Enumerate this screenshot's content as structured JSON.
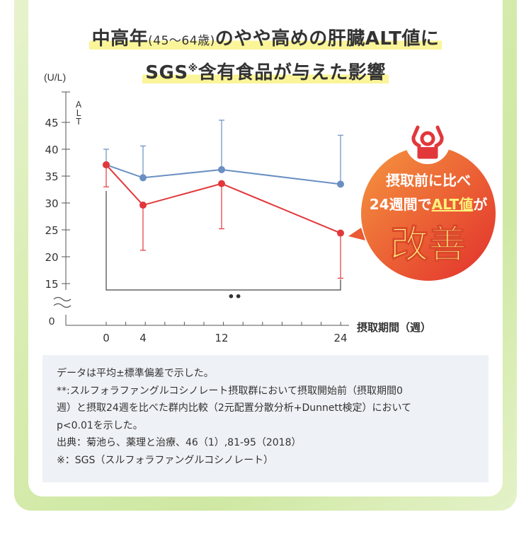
{
  "title": {
    "line1_a": "中高年",
    "line1_small": "(45～64歳)",
    "line1_b": "のやや高めの肝臓ALT値に",
    "line2_a": "SGS",
    "line2_sup": "※",
    "line2_b": "含有食品が与えた影響"
  },
  "callout": {
    "line1": "摂取前に比べ",
    "line2_a": "24週間で",
    "line2_hl": "ALT値",
    "line2_b": "が",
    "big": "改善"
  },
  "chart_data": {
    "type": "line",
    "title": "",
    "xlabel": "摂取期間（週）",
    "ylabel": "ALT",
    "yunit": "(U/L)",
    "x": [
      0,
      4,
      12,
      24
    ],
    "x_tick_labels": [
      "0",
      "4",
      "12",
      "24"
    ],
    "y_ticks": [
      15,
      20,
      25,
      30,
      35,
      40,
      45
    ],
    "y_zero_label": "0",
    "ylim": [
      14,
      47
    ],
    "axis_break": true,
    "grid": false,
    "series": [
      {
        "color": "#6a8fc2",
        "values": [
          37.1,
          34.7,
          36.2,
          33.5
        ],
        "err_upper": [
          40.0,
          40.6,
          45.4,
          42.6
        ],
        "err_lower": [
          37.1,
          34.7,
          36.2,
          33.5
        ]
      },
      {
        "color": "#e2373b",
        "values": [
          37.1,
          29.6,
          33.6,
          24.4
        ],
        "err_upper": [
          37.1,
          29.6,
          33.6,
          24.4
        ],
        "err_lower": [
          33.0,
          21.2,
          25.2,
          16.0
        ]
      }
    ],
    "significance": {
      "from_x": 0,
      "to_x": 24,
      "label": "••"
    }
  },
  "notes": [
    "データは平均±標準偏差で示した。",
    "**:スルフォラファングルコシノレート摂取群において摂取開始前（摂取期間0",
    "週）と摂取24週を比べた群内比較（2元配置分散分析+Dunnett検定）において",
    "p<0.01を示した。",
    "出典：菊池ら、薬理と治療、46（1）,81-95（2018）",
    "※：SGS（スルフォラファングルコシノレート）"
  ],
  "colors": {
    "frame": "#d6ecae",
    "highlight": "#fbf59a",
    "callout_top": "#f08a3c",
    "callout_bottom": "#e23b2c"
  },
  "icons": {
    "callout": "person-raising-arms-icon"
  }
}
